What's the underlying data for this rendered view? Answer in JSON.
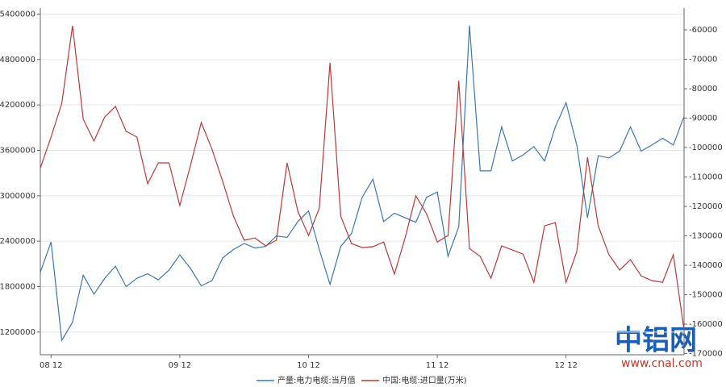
{
  "chart_data": {
    "type": "line",
    "categories": [
      null,
      "08 12",
      null,
      null,
      null,
      null,
      null,
      null,
      null,
      null,
      null,
      null,
      null,
      "09 12",
      null,
      null,
      null,
      null,
      null,
      null,
      null,
      null,
      null,
      null,
      null,
      "10 12",
      null,
      null,
      null,
      null,
      null,
      null,
      null,
      null,
      null,
      null,
      null,
      "11 12",
      null,
      null,
      null,
      null,
      null,
      null,
      null,
      null,
      null,
      null,
      null,
      "12 12",
      null,
      null,
      null,
      null,
      null,
      null,
      null,
      null,
      null,
      null,
      null
    ],
    "series": [
      {
        "name": "产量:电力电缆:当月值",
        "color": "#3a78b0",
        "values": [
          1990000,
          2390000,
          1090000,
          1330000,
          1950000,
          1700000,
          1910000,
          2070000,
          1800000,
          1910000,
          1970000,
          1890000,
          2020000,
          2220000,
          2040000,
          1810000,
          1880000,
          2180000,
          2290000,
          2370000,
          2310000,
          2330000,
          2470000,
          2450000,
          2660000,
          2800000,
          2290000,
          1830000,
          2330000,
          2500000,
          2980000,
          3220000,
          2660000,
          2770000,
          2710000,
          2650000,
          2980000,
          3050000,
          2200000,
          2590000,
          5250000,
          3330000,
          3330000,
          3910000,
          3460000,
          3540000,
          3650000,
          3460000,
          3910000,
          4230000,
          3670000,
          2710000,
          3530000,
          3500000,
          3590000,
          3910000,
          3590000,
          3670000,
          3760000,
          3670000,
          4050000
        ]
      },
      {
        "name": "中国:电缆:进口量(万米)",
        "color": "#b83a3a",
        "axis": "y2",
        "values": [
          -107000,
          -96400,
          -85000,
          -58600,
          -90400,
          -97800,
          -89600,
          -86000,
          -94500,
          -96400,
          -112300,
          -105200,
          -105200,
          -119700,
          -106000,
          -91500,
          -100600,
          -111500,
          -123300,
          -131500,
          -130700,
          -133400,
          -131500,
          -105200,
          -121600,
          -129900,
          -120600,
          -71200,
          -123300,
          -132600,
          -134000,
          -133700,
          -132100,
          -143000,
          -130700,
          -116400,
          -122500,
          -132100,
          -129900,
          -77300,
          -134300,
          -137000,
          -144400,
          -133400,
          -134800,
          -136200,
          -145800,
          -126600,
          -125500,
          -145800,
          -135400,
          -103300,
          -126600,
          -136400,
          -141600,
          -138100,
          -143600,
          -145200,
          -145800,
          -136400,
          -162000
        ]
      }
    ],
    "ylim": [
      900000,
      5480000
    ],
    "yticks": [
      1200000,
      1800000,
      2400000,
      3000000,
      3600000,
      4200000,
      4800000,
      5400000
    ],
    "y2lim": [
      -170400,
      -52600
    ],
    "y2ticks": [
      -170000,
      -160000,
      -150000,
      -140000,
      -130000,
      -120000,
      -110000,
      -100000,
      -90000,
      -80000,
      -70000,
      -60000
    ],
    "grid": true,
    "legend": "bottom",
    "watermark": {
      "title": "中铝网",
      "url": "www.cnal.com"
    }
  }
}
